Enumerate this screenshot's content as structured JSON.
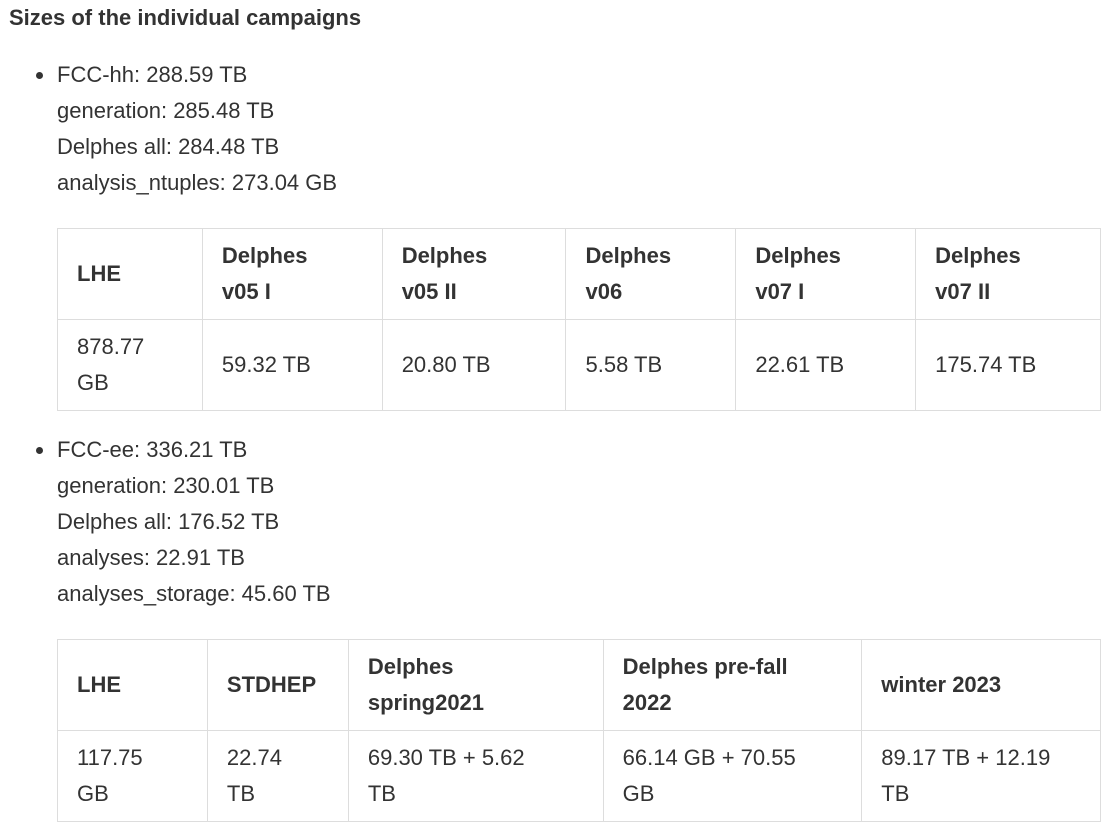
{
  "heading": "Sizes of the individual campaigns",
  "hh": {
    "lines": [
      "FCC-hh: 288.59 TB",
      "generation: 285.48 TB",
      "Delphes all: 284.48 TB",
      "analysis_ntuples: 273.04 GB"
    ],
    "headers": [
      [
        "LHE"
      ],
      [
        "Delphes",
        "v05 I"
      ],
      [
        "Delphes",
        "v05 II"
      ],
      [
        "Delphes",
        "v06"
      ],
      [
        "Delphes",
        "v07 I"
      ],
      [
        "Delphes",
        "v07 II"
      ]
    ],
    "values": [
      [
        "878.77",
        "GB"
      ],
      [
        "59.32 TB"
      ],
      [
        "20.80 TB"
      ],
      [
        "5.58 TB"
      ],
      [
        "22.61 TB"
      ],
      [
        "175.74 TB"
      ]
    ]
  },
  "ee": {
    "lines": [
      "FCC-ee: 336.21 TB",
      "generation: 230.01 TB",
      "Delphes all: 176.52 TB",
      "analyses: 22.91 TB",
      "analyses_storage: 45.60 TB"
    ],
    "headers": [
      [
        "LHE"
      ],
      [
        "STDHEP"
      ],
      [
        "Delphes",
        "spring2021"
      ],
      [
        "Delphes pre-fall",
        "2022"
      ],
      [
        "winter 2023"
      ]
    ],
    "values": [
      [
        "117.75",
        "GB"
      ],
      [
        "22.74",
        "TB"
      ],
      [
        "69.30 TB + 5.62",
        "TB"
      ],
      [
        "66.14 GB + 70.55",
        "GB"
      ],
      [
        "89.17 TB + 12.19",
        "TB"
      ]
    ]
  }
}
